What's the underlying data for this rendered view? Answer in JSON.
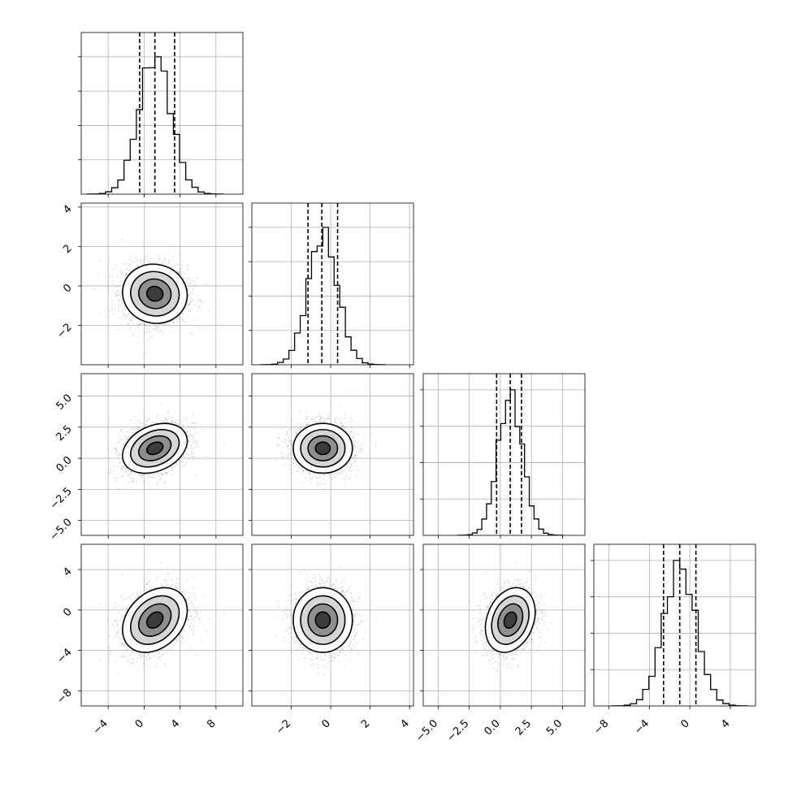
{
  "chart_data": {
    "type": "corner",
    "grid": true,
    "parameters": [
      {
        "range": [
          -7,
          11
        ],
        "ticks": [
          -4,
          0,
          4,
          8
        ],
        "tick_labels": [
          "−4",
          "0",
          "4",
          "8"
        ],
        "mean": 1.2,
        "sd": 1.8,
        "quantiles": [
          -0.5,
          1.2,
          3.4
        ]
      },
      {
        "range": [
          -4,
          4.2
        ],
        "ticks": [
          -2,
          0,
          2,
          4
        ],
        "tick_labels": [
          "−2",
          "0",
          "2",
          "4"
        ],
        "mean": -0.4,
        "sd": 0.75,
        "quantiles": [
          -1.15,
          -0.45,
          0.35
        ]
      },
      {
        "range": [
          -6.2,
          6.8
        ],
        "ticks": [
          -5,
          -2.5,
          0,
          2.5,
          5
        ],
        "tick_labels": [
          "−5.0",
          "−2.5",
          "0.0",
          "2.5",
          "5.0"
        ],
        "mean": 0.8,
        "sd": 1.0,
        "quantiles": [
          -0.3,
          0.8,
          1.7
        ]
      },
      {
        "range": [
          -9.5,
          6.5
        ],
        "ticks": [
          -8,
          -4,
          0,
          4
        ],
        "tick_labels": [
          "−8",
          "−4",
          "0",
          "4"
        ],
        "mean": -1.0,
        "sd": 1.6,
        "quantiles": [
          -2.6,
          -1.0,
          0.6
        ]
      }
    ],
    "correlations": [
      [
        0,
        1,
        -0.05
      ],
      [
        0,
        2,
        0.3
      ],
      [
        0,
        3,
        0.3
      ],
      [
        1,
        2,
        0.0
      ],
      [
        1,
        3,
        0.0
      ],
      [
        2,
        3,
        0.25
      ]
    ],
    "histogram_peaks": [
      0.85,
      0.85,
      0.9,
      0.9
    ],
    "samples": 4000,
    "contour_levels": [
      0.5,
      1.0,
      1.5,
      2.0
    ]
  }
}
